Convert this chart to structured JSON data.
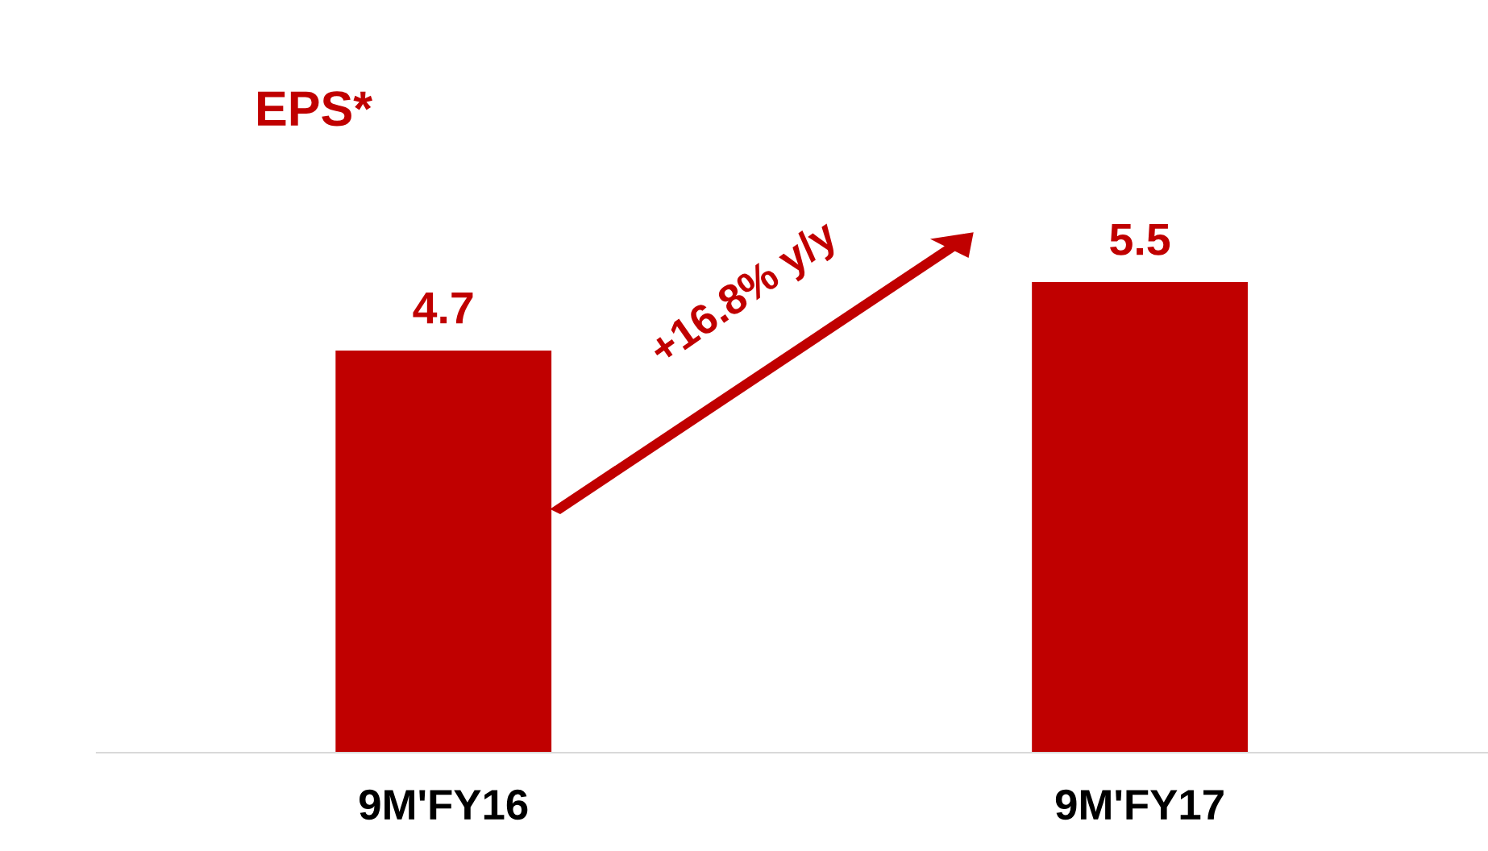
{
  "chart_data": {
    "type": "bar",
    "title": "EPS*",
    "categories": [
      "9M'FY16",
      "9M'FY17"
    ],
    "values": [
      4.7,
      5.5
    ],
    "color": "#c00000",
    "data_labels": true,
    "grid": false,
    "legend": false,
    "tick_labels": "x",
    "annotations": [
      "+16.8% y/y"
    ]
  }
}
